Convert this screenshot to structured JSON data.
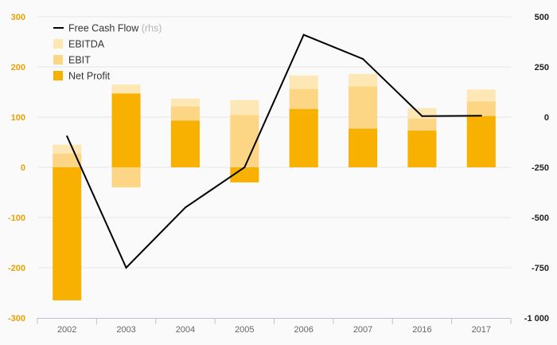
{
  "chart_data": {
    "type": "bar",
    "categories": [
      "2002",
      "2003",
      "2004",
      "2005",
      "2006",
      "2007",
      "2016",
      "2017"
    ],
    "series": [
      {
        "name": "EBITDA",
        "color": "#fde7b4",
        "axis": "left",
        "values": [
          45,
          165,
          137,
          134,
          183,
          186,
          118,
          155
        ]
      },
      {
        "name": "EBIT",
        "color": "#fcd684",
        "axis": "left",
        "values": [
          27,
          -40,
          121,
          104,
          156,
          161,
          97,
          131
        ]
      },
      {
        "name": "Net Profit",
        "color": "#f8b100",
        "axis": "left",
        "values": [
          -265,
          147,
          93,
          -30,
          116,
          77,
          73,
          102
        ]
      },
      {
        "name": "Free Cash Flow",
        "suffix": "(rhs)",
        "color": "#000000",
        "axis": "right",
        "type": "line",
        "values": [
          -95,
          -750,
          -450,
          -250,
          410,
          290,
          5,
          7
        ]
      }
    ],
    "y_left": {
      "min": -300,
      "max": 300,
      "ticks": [
        "300",
        "200",
        "100",
        "0",
        "-100",
        "-200",
        "-300"
      ],
      "tick_values": [
        300,
        200,
        100,
        0,
        -100,
        -200,
        -300
      ]
    },
    "y_right": {
      "min": -1000,
      "max": 500,
      "ticks": [
        "500",
        "250",
        "0",
        "-250",
        "-500",
        "-750",
        "-1 000"
      ],
      "tick_values": [
        500,
        250,
        0,
        -250,
        -500,
        -750,
        -1000
      ]
    },
    "legend_placement": "top-left",
    "grid": true
  }
}
